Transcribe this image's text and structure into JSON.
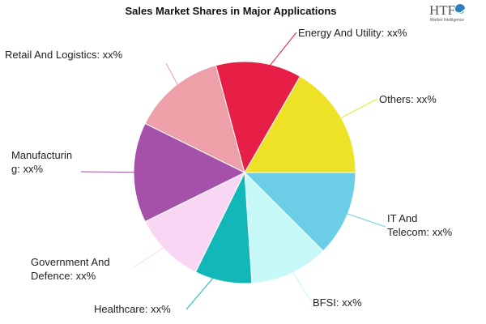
{
  "chart_data": {
    "type": "pie",
    "title": "Sales Market Shares in Major Applications",
    "categories": [
      "IT And Telecom",
      "BFSI",
      "Healthcare",
      "Government And Defence",
      "Manufacturing",
      "Retail And Logistics",
      "Energy And Utility",
      "Others"
    ],
    "label_lines": [
      [
        "IT And",
        "Telecom: xx%"
      ],
      [
        "BFSI: xx%"
      ],
      [
        "Healthcare: xx%"
      ],
      [
        "Government And",
        "Defence: xx%"
      ],
      [
        "Manufacturin",
        "g: xx%"
      ],
      [
        "Retail And Logistics: xx%"
      ],
      [
        "Energy And Utility: xx%"
      ],
      [
        "Others: xx%"
      ]
    ],
    "values": [
      12,
      11,
      8,
      10,
      14,
      13,
      12,
      16
    ],
    "colors": [
      "#6ccde6",
      "#c7f8f8",
      "#12b8b7",
      "#fad6f5",
      "#a551aa",
      "#eda0a8",
      "#e71f46",
      "#ede226"
    ],
    "start_direction": "east",
    "direction": "clockwise",
    "legend": "none"
  },
  "logo": {
    "text": "HTF",
    "subtext": "Market Intelligence"
  }
}
